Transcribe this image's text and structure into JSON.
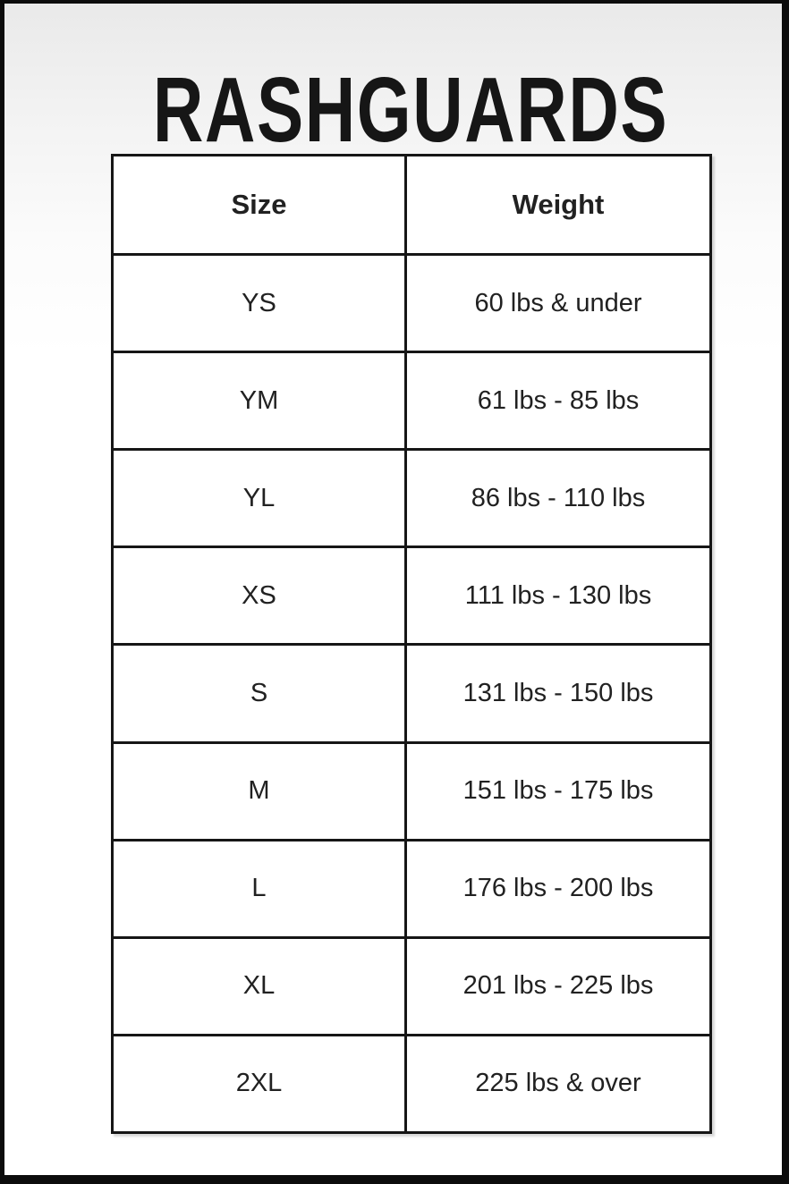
{
  "title": "RASHGUARDS",
  "size_chart": {
    "columns": [
      "Size",
      "Weight"
    ],
    "rows": [
      {
        "size": "YS",
        "weight": "60 lbs & under"
      },
      {
        "size": "YM",
        "weight": "61 lbs - 85 lbs"
      },
      {
        "size": "YL",
        "weight": "86 lbs - 110 lbs"
      },
      {
        "size": "XS",
        "weight": "111 lbs - 130 lbs"
      },
      {
        "size": "S",
        "weight": "131 lbs - 150 lbs"
      },
      {
        "size": "M",
        "weight": "151 lbs - 175 lbs"
      },
      {
        "size": "L",
        "weight": "176 lbs - 200 lbs"
      },
      {
        "size": "XL",
        "weight": "201 lbs - 225 lbs"
      },
      {
        "size": "2XL",
        "weight": "225 lbs & over"
      }
    ]
  },
  "colors": {
    "frame": "#0c0c0c",
    "table_border": "#161616",
    "text": "#212121",
    "background_top": "#e9e9e9",
    "background_bottom": "#ffffff"
  }
}
